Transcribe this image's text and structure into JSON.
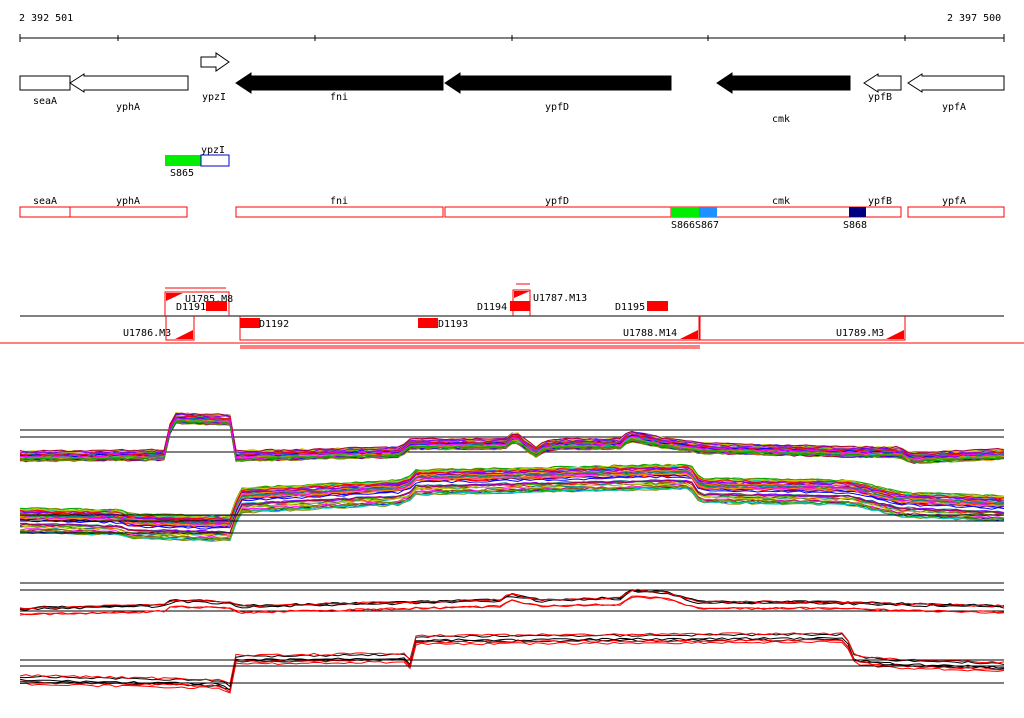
{
  "ruler": {
    "start_label": "2 392 501",
    "end_label": "2 397 500"
  },
  "genes": [
    {
      "name": "seaA",
      "strand": "-",
      "fill": "white",
      "shape": "box"
    },
    {
      "name": "yphA",
      "strand": "-",
      "fill": "white",
      "shape": "arrow"
    },
    {
      "name": "ypzI",
      "strand": "+",
      "fill": "white",
      "shape": "arrow"
    },
    {
      "name": "fni",
      "strand": "-",
      "fill": "black",
      "shape": "arrow"
    },
    {
      "name": "ypfD",
      "strand": "-",
      "fill": "black",
      "shape": "arrow"
    },
    {
      "name": "cmk",
      "strand": "-",
      "fill": "black",
      "shape": "arrow"
    },
    {
      "name": "ypfB",
      "strand": "-",
      "fill": "white",
      "shape": "arrow"
    },
    {
      "name": "ypfA",
      "strand": "-",
      "fill": "white",
      "shape": "arrow"
    }
  ],
  "upper_feature": {
    "gene_label": "ypzI",
    "segment_label": "S865",
    "segment_color": "#00ee00",
    "outline_color": "#0000cc"
  },
  "gene_row2": [
    {
      "name": "seaA"
    },
    {
      "name": "yphA"
    },
    {
      "name": "fni"
    },
    {
      "name": "ypfD"
    },
    {
      "name": "cmk"
    },
    {
      "name": "ypfB"
    },
    {
      "name": "ypfA"
    }
  ],
  "segments": [
    {
      "label": "S866",
      "color": "#00ee00"
    },
    {
      "label": "S867",
      "color": "#1e90ff"
    },
    {
      "label": "S868",
      "color": "#000080"
    }
  ],
  "transcripts_upper": [
    {
      "label": "U1785.M8"
    },
    {
      "label": "U1787.M13"
    }
  ],
  "transcripts_lower": [
    {
      "label": "U1786.M3"
    },
    {
      "label": "U1788.M14"
    },
    {
      "label": "U1789.M3"
    }
  ],
  "downregions": [
    {
      "label": "D1191"
    },
    {
      "label": "D1192"
    },
    {
      "label": "D1193"
    },
    {
      "label": "D1194"
    },
    {
      "label": "D1195"
    }
  ],
  "colors": {
    "accent": "#ff0000",
    "track_black": "#000000",
    "trace_palette": [
      "#ff0000",
      "#00aa00",
      "#0000ff",
      "#ff00ff",
      "#00cccc",
      "#cccc00",
      "#ff8800",
      "#8800ff",
      "#008888",
      "#888800",
      "#aa0044",
      "#44aa00"
    ]
  }
}
